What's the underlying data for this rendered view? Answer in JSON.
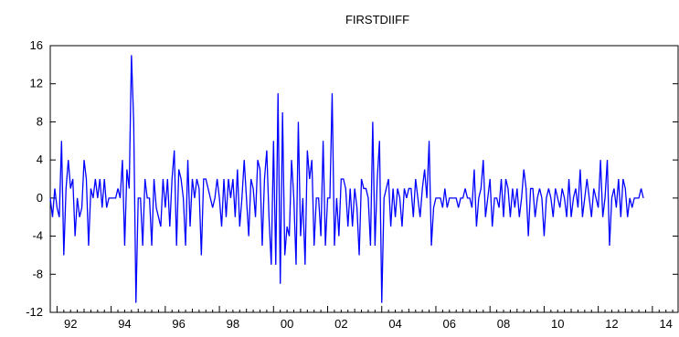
{
  "chart_data": {
    "type": "line",
    "title": "FIRSTDIIFF",
    "xlabel": "",
    "ylabel": "",
    "x_start": "1991-10",
    "x_end": "2014-12",
    "x_unit": "month",
    "xlim": [
      1991.75,
      2014.95
    ],
    "ylim": [
      -12,
      16
    ],
    "y_ticks": [
      "-12",
      "-8",
      "-4",
      "0",
      "4",
      "8",
      "12",
      "16"
    ],
    "x_ticks": [
      "92",
      "94",
      "96",
      "98",
      "00",
      "02",
      "04",
      "06",
      "08",
      "10",
      "12",
      "14"
    ],
    "x_tick_years": [
      1992,
      1994,
      1996,
      1998,
      2000,
      2002,
      2004,
      2006,
      2008,
      2010,
      2012,
      2014
    ],
    "grid": false,
    "legend": "none",
    "line_color": "#0000ff",
    "series": [
      {
        "values": [
          0,
          -2,
          1,
          -1,
          -2,
          6,
          -6,
          1,
          4,
          1,
          2,
          -4,
          0,
          -2,
          -1,
          4,
          2,
          -5,
          1,
          0,
          2,
          0,
          2,
          -1,
          2,
          -1,
          0,
          0,
          0,
          0,
          1,
          0,
          4,
          -5,
          3,
          1,
          15,
          8,
          -11,
          0,
          0,
          -5,
          2,
          0,
          0,
          -5,
          2,
          -1,
          -2,
          -3,
          2,
          -1,
          2,
          -3,
          2,
          5,
          -5,
          3,
          2,
          0,
          -5,
          4,
          -3,
          2,
          0,
          2,
          1,
          -6,
          2,
          2,
          1,
          0,
          -1,
          0,
          2,
          0,
          -3,
          2,
          -2,
          2,
          0,
          2,
          -2,
          3,
          -3,
          0,
          4,
          0,
          -4,
          2,
          1,
          -2,
          4,
          3,
          -5,
          2,
          5,
          -2,
          -7,
          6,
          -7,
          11,
          -9,
          9,
          -6,
          -3,
          -4,
          4,
          0,
          -7,
          8,
          -4,
          0,
          -7,
          5,
          2,
          4,
          -5,
          0,
          0,
          -4,
          6,
          -5,
          0,
          0,
          11,
          -5,
          0,
          -4,
          2,
          2,
          1,
          -3,
          1,
          -3,
          1,
          -1,
          -6,
          2,
          1,
          1,
          0,
          -5,
          8,
          -5,
          2,
          6,
          -11,
          0,
          1,
          2,
          -3,
          1,
          -2,
          1,
          0,
          -3,
          1,
          0,
          1,
          1,
          -2,
          2,
          0,
          -2,
          1,
          3,
          0,
          6,
          -5,
          -1,
          0,
          0,
          0,
          -1,
          1,
          -1,
          0,
          0,
          0,
          0,
          -1,
          0,
          0,
          1,
          0,
          0,
          -1,
          3,
          -3,
          0,
          1,
          4,
          -2,
          0,
          2,
          -3,
          0,
          0,
          -1,
          2,
          -2,
          2,
          1,
          -2,
          1,
          -1,
          1,
          -2,
          0,
          3,
          1,
          -4,
          1,
          1,
          -2,
          0,
          1,
          0,
          -4,
          0,
          1,
          0,
          -2,
          1,
          0,
          -1,
          1,
          0,
          -2,
          2,
          -2,
          0,
          1,
          -1,
          3,
          -2,
          0,
          2,
          0,
          -2,
          1,
          0,
          -1,
          4,
          -2,
          0,
          4,
          -5,
          0,
          1,
          -1,
          2,
          -2,
          2,
          1,
          -2,
          0,
          -1,
          0,
          0,
          0,
          1,
          0
        ]
      }
    ]
  }
}
